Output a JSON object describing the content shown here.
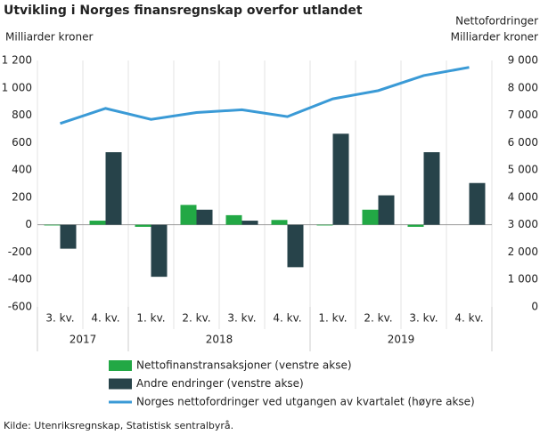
{
  "chart_data": {
    "type": "bar_line",
    "title": "Utvikling i Norges finansregnskap overfor utlandet",
    "y_label": "Milliarder  kroner",
    "y2_label_top": "Nettofordringer",
    "y2_label": "Milliarder  kroner",
    "categories": [
      "3. kv.",
      "4. kv.",
      "1. kv.",
      "2. kv.",
      "3. kv.",
      "4. kv.",
      "1. kv.",
      "2. kv.",
      "3. kv.",
      "4. kv."
    ],
    "groups": [
      {
        "label": "2017",
        "span": 2
      },
      {
        "label": "2018",
        "span": 4
      },
      {
        "label": "2019",
        "span": 4
      }
    ],
    "series": [
      {
        "name": "Nettofinanstransaksjoner (venstre akse)",
        "color": "#22a845",
        "kind": "bar",
        "values": [
          -5,
          30,
          -15,
          145,
          70,
          35,
          -5,
          110,
          -15,
          null
        ]
      },
      {
        "name": "Andre endringer (venstre akse)",
        "color": "#27434a",
        "kind": "bar",
        "values": [
          -175,
          530,
          -380,
          110,
          30,
          -310,
          665,
          215,
          530,
          305
        ]
      },
      {
        "name": "Norges nettofordringer ved utgangen av kvartalet (høyre akse)",
        "color": "#3a9ad6",
        "kind": "line",
        "axis": "y2",
        "values": [
          6700,
          7250,
          6850,
          7100,
          7200,
          6950,
          7600,
          7900,
          8450,
          8750
        ]
      }
    ],
    "ylim": [
      -600,
      1200
    ],
    "yticks": [
      -600,
      -400,
      -200,
      0,
      200,
      400,
      600,
      800,
      {
        "value": 1000,
        "label": "1 000"
      },
      {
        "value": 1200,
        "label": "1 200"
      }
    ],
    "y2lim": [
      0,
      9000
    ],
    "y2ticks": [
      0,
      {
        "value": 1000,
        "label": "1 000"
      },
      {
        "value": 2000,
        "label": "2 000"
      },
      {
        "value": 3000,
        "label": "3 000"
      },
      {
        "value": 4000,
        "label": "4 000"
      },
      {
        "value": 5000,
        "label": "5 000"
      },
      {
        "value": 6000,
        "label": "6 000"
      },
      {
        "value": 7000,
        "label": "7 000"
      },
      {
        "value": 8000,
        "label": "8 000"
      },
      {
        "value": 9000,
        "label": "9 000"
      }
    ],
    "source": "Kilde: Utenriksregnskap, Statistisk sentralbyrå."
  }
}
